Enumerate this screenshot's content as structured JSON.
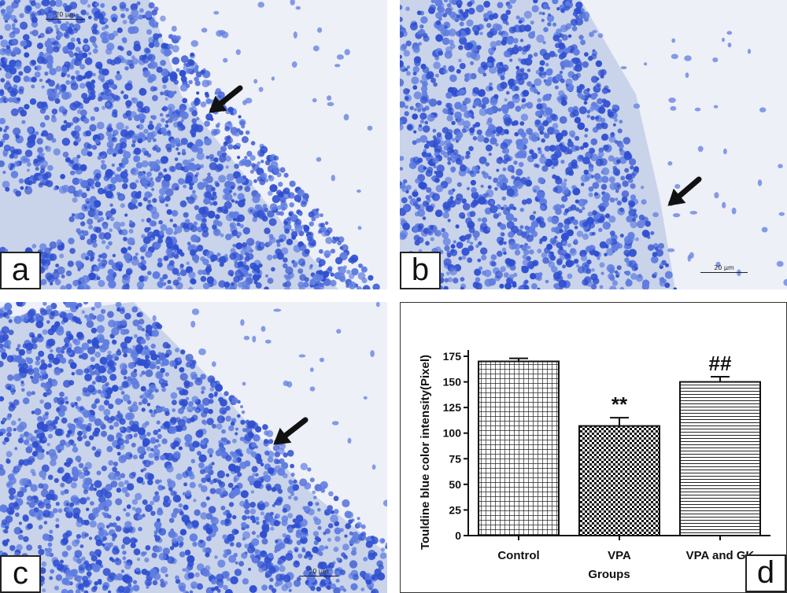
{
  "panels": [
    {
      "label": "a",
      "scale_bar": "20 µm"
    },
    {
      "label": "b",
      "scale_bar": "20 µm"
    },
    {
      "label": "c",
      "scale_bar": "20 µm"
    },
    {
      "label": "d"
    }
  ],
  "colors": {
    "stain_dark": "#2f4fd0",
    "stain_mid": "#5f7de0",
    "stain_light": "#c9d3ea",
    "background_light": "#eef0f8",
    "arrow": "#111111"
  },
  "chart_data": {
    "type": "bar",
    "categories": [
      "Control",
      "VPA",
      "VPA and GK"
    ],
    "values": [
      170,
      107,
      150
    ],
    "errors": [
      3,
      8,
      5
    ],
    "annotations": [
      "",
      "**",
      "##"
    ],
    "bar_patterns": [
      "grid",
      "checker",
      "horizontal-lines"
    ],
    "xlabel": "Groups",
    "ylabel": "Touldine blue color intensity(Pixel)",
    "ylim": [
      0,
      175
    ],
    "yticks": [
      "0",
      "25",
      "50",
      "75",
      "100",
      "125",
      "150",
      "175"
    ],
    "grid": false
  }
}
